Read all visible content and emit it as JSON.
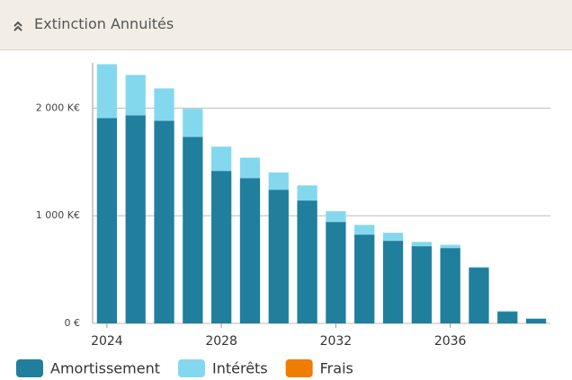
{
  "header": {
    "title": "Extinction Annuités"
  },
  "chart_data": {
    "type": "stacked-bar",
    "x": [
      2024,
      2025,
      2026,
      2027,
      2028,
      2029,
      2030,
      2031,
      2032,
      2033,
      2034,
      2035,
      2036,
      2037,
      2038,
      2039
    ],
    "xlim": [
      2023.5,
      2039.5
    ],
    "xticks": [
      2024,
      2028,
      2032,
      2036
    ],
    "ylim": [
      0,
      2420
    ],
    "yticks": [
      {
        "value": 0,
        "label": "0 €"
      },
      {
        "value": 1000,
        "label": "1 000 K€"
      },
      {
        "value": 2000,
        "label": "2 000 K€"
      }
    ],
    "grid": true,
    "legend": "bottom",
    "series": [
      {
        "name": "Amortissement",
        "color": "#1f7f9c",
        "values": [
          1908,
          1933,
          1883,
          1733,
          1417,
          1350,
          1242,
          1142,
          942,
          825,
          767,
          717,
          700,
          517,
          108,
          42
        ]
      },
      {
        "name": "Intérêts",
        "color": "#84d8ee",
        "values": [
          500,
          375,
          300,
          260,
          225,
          190,
          160,
          140,
          100,
          90,
          75,
          40,
          30,
          8,
          8,
          5
        ]
      },
      {
        "name": "Frais",
        "color": "#f07c00",
        "values": [
          0,
          0,
          0,
          0,
          0,
          0,
          0,
          0,
          0,
          0,
          0,
          0,
          0,
          0,
          0,
          0
        ]
      }
    ]
  }
}
